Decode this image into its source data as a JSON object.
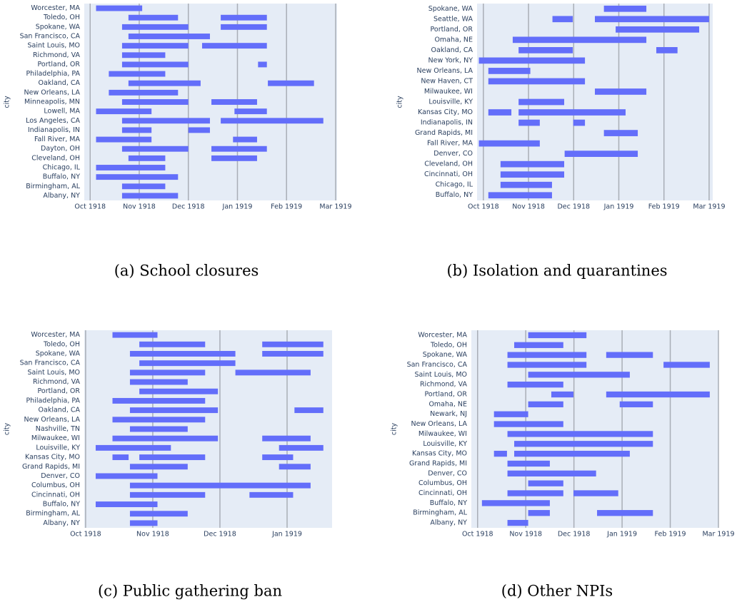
{
  "chart_data": [
    {
      "type": "timeline",
      "caption": "(a) School closures",
      "ylabel": "city",
      "color": "#636efa",
      "xlim": [
        -0.12,
        5.03
      ],
      "xticks": [
        {
          "value": 0,
          "label": "Oct 1918"
        },
        {
          "value": 1,
          "label": "Nov 1918"
        },
        {
          "value": 2,
          "label": "Dec 1918"
        },
        {
          "value": 3,
          "label": "Jan 1919"
        },
        {
          "value": 4,
          "label": "Feb 1919"
        },
        {
          "value": 5,
          "label": "Mar 1919"
        }
      ],
      "categories": [
        "Worcester, MA",
        "Toledo, OH",
        "Spokane, WA",
        "San Francisco, CA",
        "Saint Louis, MO",
        "Richmond, VA",
        "Portland, OR",
        "Philadelphia, PA",
        "Oakland, CA",
        "New Orleans, LA",
        "Minneapolis, MN",
        "Lowell, MA",
        "Los Angeles, CA",
        "Indianapolis, IN",
        "Fall River, MA",
        "Dayton, OH",
        "Cleveland, OH",
        "Chicago, IL",
        "Buffalo, NY",
        "Birmingham, AL",
        "Albany, NY"
      ],
      "intervals": [
        [
          [
            0.12,
            1.06
          ]
        ],
        [
          [
            0.78,
            1.79
          ],
          [
            2.66,
            3.6
          ]
        ],
        [
          [
            0.65,
            2.0
          ],
          [
            2.66,
            3.6
          ]
        ],
        [
          [
            0.78,
            2.44
          ]
        ],
        [
          [
            0.65,
            2.0
          ],
          [
            2.28,
            3.6
          ]
        ],
        [
          [
            0.65,
            1.53
          ]
        ],
        [
          [
            0.65,
            2.0
          ],
          [
            3.42,
            3.6
          ]
        ],
        [
          [
            0.38,
            1.53
          ]
        ],
        [
          [
            0.78,
            2.25
          ],
          [
            3.62,
            4.56
          ]
        ],
        [
          [
            0.38,
            1.79
          ]
        ],
        [
          [
            0.65,
            2.0
          ],
          [
            2.47,
            3.4
          ]
        ],
        [
          [
            0.12,
            1.25
          ],
          [
            2.94,
            3.6
          ]
        ],
        [
          [
            0.65,
            2.44
          ],
          [
            2.66,
            4.75
          ]
        ],
        [
          [
            0.65,
            1.25
          ],
          [
            2.0,
            2.44
          ]
        ],
        [
          [
            0.12,
            1.25
          ],
          [
            2.91,
            3.4
          ]
        ],
        [
          [
            0.65,
            2.0
          ],
          [
            2.47,
            3.6
          ]
        ],
        [
          [
            0.78,
            1.53
          ],
          [
            2.47,
            3.4
          ]
        ],
        [
          [
            0.12,
            1.53
          ]
        ],
        [
          [
            0.12,
            1.79
          ]
        ],
        [
          [
            0.65,
            1.53
          ]
        ],
        [
          [
            0.65,
            1.79
          ]
        ]
      ]
    },
    {
      "type": "timeline",
      "caption": "(b) Isolation and quarantines",
      "ylabel": "city",
      "color": "#636efa",
      "xlim": [
        -0.14,
        5.08
      ],
      "xticks": [
        {
          "value": 0,
          "label": "Oct 1918"
        },
        {
          "value": 1,
          "label": "Nov 1918"
        },
        {
          "value": 2,
          "label": "Dec 1918"
        },
        {
          "value": 3,
          "label": "Jan 1919"
        },
        {
          "value": 4,
          "label": "Feb 1919"
        },
        {
          "value": 5,
          "label": "Mar 1919"
        }
      ],
      "categories": [
        "Spokane, WA",
        "Seattle, WA",
        "Portland, OR",
        "Omaha, NE",
        "Oakland, CA",
        "New York, NY",
        "New Orleans, LA",
        "New Haven, CT",
        "Milwaukee, WI",
        "Louisville, KY",
        "Kansas City, MO",
        "Indianapolis, IN",
        "Grand Rapids, MI",
        "Fall River, MA",
        "Denver, CO",
        "Cleveland, OH",
        "Cincinnati, OH",
        "Chicago, IL",
        "Buffalo, NY"
      ],
      "intervals": [
        [
          [
            2.67,
            3.61
          ]
        ],
        [
          [
            1.53,
            1.98
          ],
          [
            2.47,
            5.0
          ]
        ],
        [
          [
            2.93,
            4.78
          ]
        ],
        [
          [
            0.65,
            3.61
          ]
        ],
        [
          [
            0.78,
            1.98
          ],
          [
            3.83,
            4.3
          ]
        ],
        [
          [
            -0.1,
            2.25
          ]
        ],
        [
          [
            0.11,
            1.04
          ]
        ],
        [
          [
            0.11,
            2.25
          ]
        ],
        [
          [
            2.47,
            3.61
          ]
        ],
        [
          [
            0.78,
            1.79
          ]
        ],
        [
          [
            0.11,
            0.62
          ],
          [
            0.78,
            3.15
          ]
        ],
        [
          [
            0.78,
            1.25
          ],
          [
            1.99,
            2.25
          ]
        ],
        [
          [
            2.67,
            3.42
          ]
        ],
        [
          [
            -0.1,
            1.25
          ]
        ],
        [
          [
            1.8,
            3.42
          ]
        ],
        [
          [
            0.38,
            1.79
          ]
        ],
        [
          [
            0.38,
            1.79
          ]
        ],
        [
          [
            0.38,
            1.52
          ]
        ],
        [
          [
            0.11,
            1.52
          ]
        ]
      ]
    },
    {
      "type": "timeline",
      "caption": "(c) Public gathering ban",
      "ylabel": "city",
      "color": "#636efa",
      "xlim": [
        -0.02,
        3.67
      ],
      "xticks": [
        {
          "value": 0,
          "label": "Oct 1918"
        },
        {
          "value": 1,
          "label": "Nov 1918"
        },
        {
          "value": 2,
          "label": "Dec 1918"
        },
        {
          "value": 3,
          "label": "Jan 1919"
        }
      ],
      "categories": [
        "Worcester, MA",
        "Toledo, OH",
        "Spokane, WA",
        "San Francisco, CA",
        "Saint Louis, MO",
        "Richmond, VA",
        "Portland, OR",
        "Philadelphia, PA",
        "Oakland, CA",
        "New Orleans, LA",
        "Nashville, TN",
        "Milwaukee, WI",
        "Louisville, KY",
        "Kansas City, MO",
        "Grand Rapids, MI",
        "Denver, CO",
        "Columbus, OH",
        "Cincinnati, OH",
        "Buffalo, NY",
        "Birmingham, AL",
        "Albany, NY"
      ],
      "intervals": [
        [
          [
            0.4,
            1.07
          ]
        ],
        [
          [
            0.8,
            1.78
          ],
          [
            2.63,
            3.54
          ]
        ],
        [
          [
            0.66,
            2.23
          ],
          [
            2.63,
            3.54
          ]
        ],
        [
          [
            0.8,
            2.23
          ]
        ],
        [
          [
            0.66,
            1.78
          ],
          [
            2.23,
            3.35
          ]
        ],
        [
          [
            0.66,
            1.52
          ]
        ],
        [
          [
            0.8,
            1.97
          ]
        ],
        [
          [
            0.4,
            1.78
          ]
        ],
        [
          [
            0.66,
            1.97
          ],
          [
            3.11,
            3.54
          ]
        ],
        [
          [
            0.4,
            1.78
          ]
        ],
        [
          [
            0.66,
            1.52
          ]
        ],
        [
          [
            0.4,
            1.97
          ],
          [
            2.63,
            3.35
          ]
        ],
        [
          [
            0.15,
            1.27
          ],
          [
            2.88,
            3.54
          ]
        ],
        [
          [
            0.4,
            0.64
          ],
          [
            0.8,
            1.78
          ],
          [
            2.63,
            3.09
          ]
        ],
        [
          [
            0.66,
            1.52
          ],
          [
            2.88,
            3.35
          ]
        ],
        [
          [
            0.15,
            1.07
          ]
        ],
        [
          [
            0.66,
            3.35
          ]
        ],
        [
          [
            0.66,
            1.78
          ],
          [
            2.44,
            3.09
          ]
        ],
        [
          [
            0.15,
            1.07
          ]
        ],
        [
          [
            0.66,
            1.52
          ]
        ],
        [
          [
            0.66,
            1.07
          ]
        ]
      ]
    },
    {
      "type": "timeline",
      "caption": "(d) Other NPIs",
      "ylabel": "city",
      "color": "#636efa",
      "xlim": [
        -0.13,
        5.0
      ],
      "xticks": [
        {
          "value": 0,
          "label": "Oct 1918"
        },
        {
          "value": 1,
          "label": "Nov 1918"
        },
        {
          "value": 2,
          "label": "Dec 1918"
        },
        {
          "value": 3,
          "label": "Jan 1919"
        },
        {
          "value": 4,
          "label": "Feb 1919"
        },
        {
          "value": 5,
          "label": "Mar 1919"
        }
      ],
      "categories": [
        "Worcester, MA",
        "Toledo, OH",
        "Spokane, WA",
        "San Francisco, CA",
        "Saint Louis, MO",
        "Richmond, VA",
        "Portland, OR",
        "Omaha, NE",
        "Newark, NJ",
        "New Orleans, LA",
        "Milwaukee, WI",
        "Louisville, KY",
        "Kansas City, MO",
        "Grand Rapids, MI",
        "Denver, CO",
        "Columbus, OH",
        "Cincinnati, OH",
        "Buffalo, NY",
        "Birmingham, AL",
        "Albany, NY"
      ],
      "intervals": [
        [
          [
            1.05,
            2.26
          ]
        ],
        [
          [
            0.76,
            1.78
          ]
        ],
        [
          [
            0.62,
            2.26
          ],
          [
            2.67,
            3.64
          ]
        ],
        [
          [
            0.62,
            2.26
          ],
          [
            3.86,
            4.82
          ]
        ],
        [
          [
            1.05,
            3.16
          ]
        ],
        [
          [
            0.62,
            1.78
          ]
        ],
        [
          [
            1.53,
            1.99
          ],
          [
            2.67,
            4.82
          ]
        ],
        [
          [
            1.05,
            1.78
          ],
          [
            2.95,
            3.64
          ]
        ],
        [
          [
            0.34,
            1.05
          ]
        ],
        [
          [
            0.34,
            1.78
          ]
        ],
        [
          [
            0.62,
            3.64
          ]
        ],
        [
          [
            0.76,
            3.64
          ]
        ],
        [
          [
            0.34,
            0.61
          ],
          [
            0.76,
            3.16
          ]
        ],
        [
          [
            0.62,
            1.5
          ]
        ],
        [
          [
            0.62,
            2.46
          ]
        ],
        [
          [
            1.05,
            1.78
          ]
        ],
        [
          [
            0.62,
            1.78
          ],
          [
            1.99,
            2.92
          ]
        ],
        [
          [
            0.09,
            1.5
          ]
        ],
        [
          [
            1.05,
            1.5
          ],
          [
            2.48,
            3.64
          ]
        ],
        [
          [
            0.62,
            1.05
          ]
        ]
      ]
    }
  ]
}
